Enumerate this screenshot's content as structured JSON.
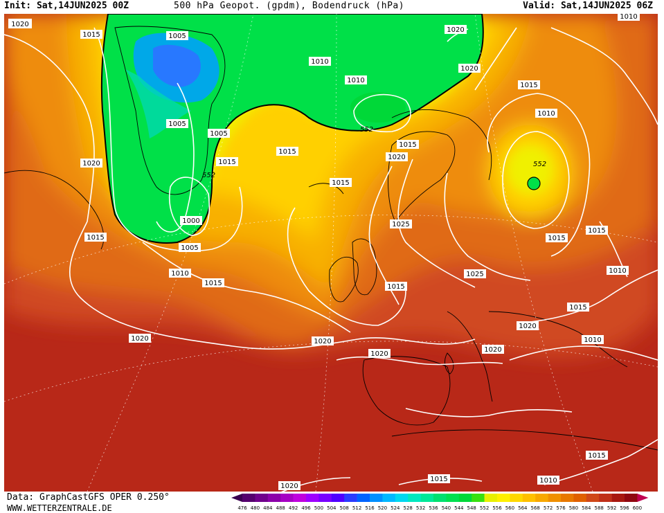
{
  "header": {
    "init": "Init: Sat,14JUN2025 00Z",
    "title": "500 hPa Geopot. (gpdm), Bodendruck (hPa)",
    "valid": "Valid: Sat,14JUN2025 06Z"
  },
  "footer": {
    "data": "Data: GraphCastGFS OPER 0.250°",
    "url": "WWW.WETTERZENTRALE.DE"
  },
  "legend": {
    "values": [
      "476",
      "480",
      "484",
      "488",
      "492",
      "496",
      "500",
      "504",
      "508",
      "512",
      "516",
      "520",
      "524",
      "528",
      "532",
      "536",
      "540",
      "544",
      "548",
      "552",
      "556",
      "560",
      "564",
      "568",
      "572",
      "576",
      "580",
      "584",
      "588",
      "592",
      "596",
      "600"
    ],
    "colors": [
      "#3a0050",
      "#55006e",
      "#70008c",
      "#8c00aa",
      "#a600c4",
      "#c000de",
      "#9e00ff",
      "#7800ff",
      "#5000ff",
      "#2a3cff",
      "#0064ff",
      "#0090ff",
      "#00b8ff",
      "#00d8f0",
      "#00e8c0",
      "#00e898",
      "#00e070",
      "#00e050",
      "#00d838",
      "#38e010",
      "#e8f000",
      "#fff000",
      "#ffd800",
      "#ffc000",
      "#f8a800",
      "#f09000",
      "#e87800",
      "#e06000",
      "#d04818",
      "#c03018",
      "#a81810",
      "#900810",
      "#c00050"
    ]
  },
  "map": {
    "pressure_labels": [
      "1020",
      "1015",
      "1005",
      "1010",
      "1020",
      "1010",
      "1010",
      "1020",
      "1015",
      "1015",
      "1010",
      "1020",
      "1015",
      "1005",
      "1005",
      "1015",
      "1015",
      "1020",
      "1000",
      "1005",
      "1015",
      "1015",
      "1025",
      "1015",
      "1010",
      "1025",
      "1015",
      "1010",
      "1015",
      "1020",
      "1010",
      "1020",
      "1020",
      "1020",
      "1020",
      "1015",
      "1015",
      "1015",
      "1020",
      "1010"
    ],
    "height_labels": [
      "552",
      "552",
      "552"
    ]
  }
}
